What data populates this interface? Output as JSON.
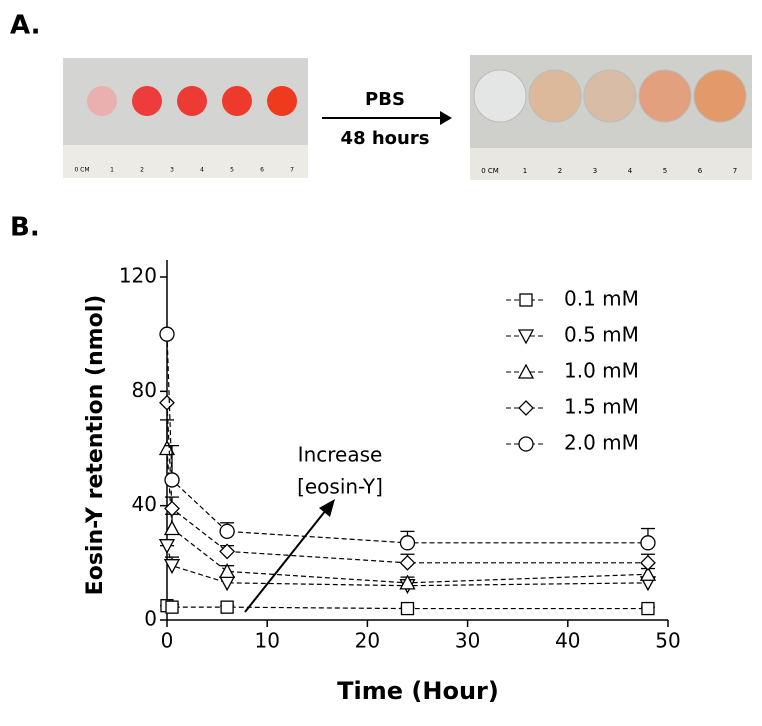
{
  "panels": {
    "a_label": "A.",
    "b_label": "B.",
    "arrow_top": "PBS",
    "arrow_bottom": "48 hours",
    "ruler_labels": [
      "0 CM",
      "1",
      "2",
      "3",
      "4",
      "5",
      "6",
      "7"
    ]
  },
  "chart_data": {
    "type": "line",
    "x_label": "Time (Hour)",
    "y_label": "Eosin-Y retention (nmol)",
    "annotation": [
      "Increase",
      "[eosin-Y]"
    ],
    "x": [
      0,
      0.5,
      6,
      24,
      48
    ],
    "series": [
      {
        "name": "0.1 mM",
        "color": "#000000",
        "marker": "square",
        "values": [
          5,
          4.5,
          4.5,
          4,
          4
        ],
        "errors": [
          0,
          1,
          0.5,
          0.5,
          0.5
        ]
      },
      {
        "name": "0.5 mM",
        "color": "#000000",
        "marker": "triangle-down",
        "values": [
          26,
          19,
          13,
          12,
          13
        ],
        "errors": [
          0,
          3,
          2,
          2,
          2
        ]
      },
      {
        "name": "1.0 mM",
        "color": "#000000",
        "marker": "triangle-up",
        "values": [
          60,
          32,
          17,
          13,
          16
        ],
        "errors": [
          10,
          5,
          2,
          2,
          2
        ]
      },
      {
        "name": "1.5 mM",
        "color": "#000000",
        "marker": "diamond",
        "values": [
          76,
          39,
          24,
          20,
          20
        ],
        "errors": [
          0,
          4,
          2,
          3,
          3
        ]
      },
      {
        "name": "2.0 mM",
        "color": "#000000",
        "marker": "circle",
        "values": [
          100,
          49,
          31,
          27,
          27
        ],
        "errors": [
          0,
          12,
          3,
          4,
          5
        ]
      }
    ],
    "xlim": [
      0,
      50
    ],
    "xticks": [
      0,
      10,
      20,
      30,
      40,
      50
    ],
    "ylim": [
      0,
      120
    ],
    "yticks": [
      0,
      40,
      80,
      120
    ],
    "legend": "upper right"
  }
}
